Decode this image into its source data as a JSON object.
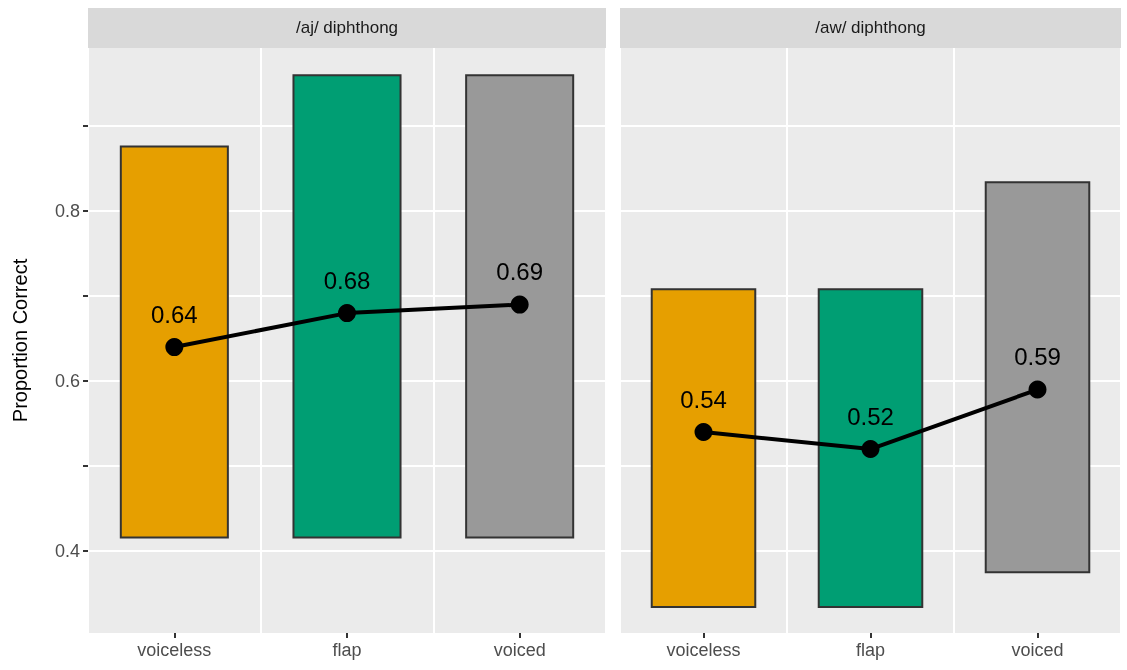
{
  "chart_data": [
    {
      "type": "bar",
      "title": "/aj/ diphthong",
      "ylabel": "Proportion Correct",
      "categories": [
        "voiceless",
        "flap",
        "voiced"
      ],
      "ylim": [
        0.3035,
        0.992
      ],
      "yticks": [
        0.4,
        {
          "value": 0.5,
          "label": null
        },
        0.6,
        {
          "value": 0.7,
          "label": null
        },
        0.8,
        {
          "value": 0.9,
          "label": null
        }
      ],
      "grid": true,
      "marker": "circle",
      "line_style": "solid",
      "series": [
        {
          "base": [
            0.416,
            0.416,
            0.416
          ],
          "values": [
            0.46,
            0.544,
            0.544
          ],
          "colors": [
            "#e69f00",
            "#009e73",
            "#999999"
          ]
        },
        {
          "type": "line",
          "color": "#000000",
          "values": [
            0.64,
            0.68,
            0.69
          ],
          "value_labels": [
            "0.64",
            "0.68",
            "0.69"
          ]
        }
      ]
    },
    {
      "type": "bar",
      "title": "/aw/ diphthong",
      "categories": [
        "voiceless",
        "flap",
        "voiced"
      ],
      "ylim": [
        0.3035,
        0.992
      ],
      "yticks": [
        0.4,
        {
          "value": 0.5,
          "label": null
        },
        0.6,
        {
          "value": 0.7,
          "label": null
        },
        0.8,
        {
          "value": 0.9,
          "label": null
        }
      ],
      "tick_labels": "x",
      "grid": true,
      "marker": "circle",
      "line_style": "solid",
      "series": [
        {
          "base": [
            0.334,
            0.334,
            0.375
          ],
          "values": [
            0.374,
            0.374,
            0.459
          ],
          "colors": [
            "#e69f00",
            "#009e73",
            "#999999"
          ]
        },
        {
          "type": "line",
          "color": "#000000",
          "values": [
            0.54,
            0.52,
            0.59
          ],
          "value_labels": [
            "0.54",
            "0.52",
            "0.59"
          ]
        }
      ]
    }
  ]
}
